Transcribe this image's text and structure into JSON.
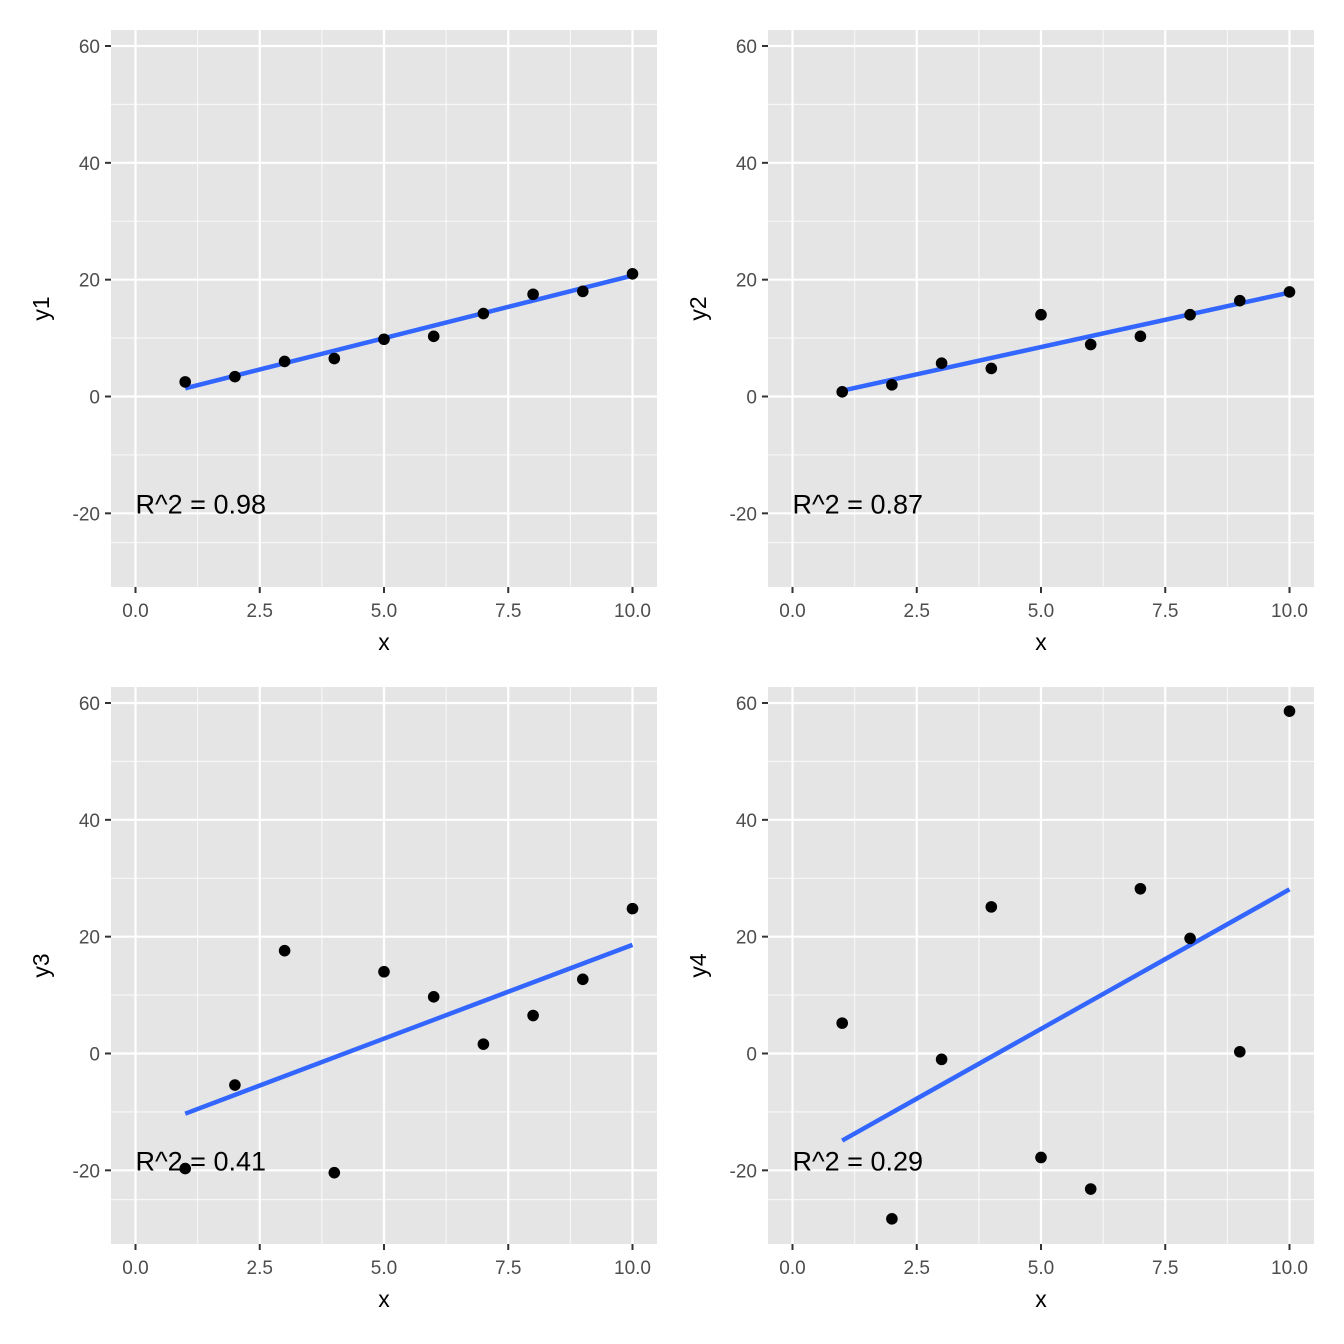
{
  "chart_data": [
    {
      "type": "scatter",
      "xlabel": "x",
      "ylabel": "y1",
      "xlim": [
        0,
        10
      ],
      "ylim": [
        -30,
        60
      ],
      "x_ticks": [
        "0.0",
        "2.5",
        "5.0",
        "7.5",
        "10.0"
      ],
      "y_ticks": [
        "-20",
        "0",
        "20",
        "40",
        "60"
      ],
      "grid": true,
      "points": [
        [
          1,
          2.5
        ],
        [
          2,
          3.4
        ],
        [
          3,
          6.0
        ],
        [
          4,
          6.5
        ],
        [
          5,
          9.8
        ],
        [
          6,
          10.3
        ],
        [
          7,
          14.2
        ],
        [
          8,
          17.5
        ],
        [
          9,
          18.0
        ],
        [
          10,
          21.0
        ]
      ],
      "fit_line": {
        "color": "#3366ff",
        "x": [
          1,
          10
        ],
        "y": [
          1.4,
          20.7
        ]
      },
      "annotation": "R^2 =  0.98"
    },
    {
      "type": "scatter",
      "xlabel": "x",
      "ylabel": "y2",
      "xlim": [
        0,
        10
      ],
      "ylim": [
        -30,
        60
      ],
      "x_ticks": [
        "0.0",
        "2.5",
        "5.0",
        "7.5",
        "10.0"
      ],
      "y_ticks": [
        "-20",
        "0",
        "20",
        "40",
        "60"
      ],
      "grid": true,
      "points": [
        [
          1,
          0.8
        ],
        [
          2,
          2.0
        ],
        [
          3,
          5.7
        ],
        [
          4,
          4.8
        ],
        [
          5,
          14.0
        ],
        [
          6,
          8.9
        ],
        [
          7,
          10.3
        ],
        [
          8,
          14.0
        ],
        [
          9,
          16.4
        ],
        [
          10,
          17.9
        ]
      ],
      "fit_line": {
        "color": "#3366ff",
        "x": [
          1,
          10
        ],
        "y": [
          1.0,
          17.8
        ]
      },
      "annotation": "R^2 =  0.87"
    },
    {
      "type": "scatter",
      "xlabel": "x",
      "ylabel": "y3",
      "xlim": [
        0,
        10
      ],
      "ylim": [
        -30,
        60
      ],
      "x_ticks": [
        "0.0",
        "2.5",
        "5.0",
        "7.5",
        "10.0"
      ],
      "y_ticks": [
        "-20",
        "0",
        "20",
        "40",
        "60"
      ],
      "grid": true,
      "points": [
        [
          1,
          -19.7
        ],
        [
          2,
          -5.4
        ],
        [
          3,
          17.6
        ],
        [
          4,
          -20.4
        ],
        [
          5,
          14.0
        ],
        [
          6,
          9.7
        ],
        [
          7,
          1.6
        ],
        [
          8,
          6.5
        ],
        [
          9,
          12.7
        ],
        [
          10,
          24.8
        ]
      ],
      "fit_line": {
        "color": "#3366ff",
        "x": [
          1,
          10
        ],
        "y": [
          -10.3,
          18.6
        ]
      },
      "annotation": "R^2 =  0.41"
    },
    {
      "type": "scatter",
      "xlabel": "x",
      "ylabel": "y4",
      "xlim": [
        0,
        10
      ],
      "ylim": [
        -30,
        60
      ],
      "x_ticks": [
        "0.0",
        "2.5",
        "5.0",
        "7.5",
        "10.0"
      ],
      "y_ticks": [
        "-20",
        "0",
        "20",
        "40",
        "60"
      ],
      "grid": true,
      "points": [
        [
          1,
          5.2
        ],
        [
          2,
          -28.3
        ],
        [
          3,
          -1.0
        ],
        [
          4,
          25.1
        ],
        [
          5,
          -17.8
        ],
        [
          6,
          -23.2
        ],
        [
          7,
          28.2
        ],
        [
          8,
          19.7
        ],
        [
          9,
          0.3
        ],
        [
          10,
          58.6
        ]
      ],
      "fit_line": {
        "color": "#3366ff",
        "x": [
          1,
          10
        ],
        "y": [
          -14.9,
          28.1
        ]
      },
      "annotation": "R^2 =  0.29"
    }
  ]
}
